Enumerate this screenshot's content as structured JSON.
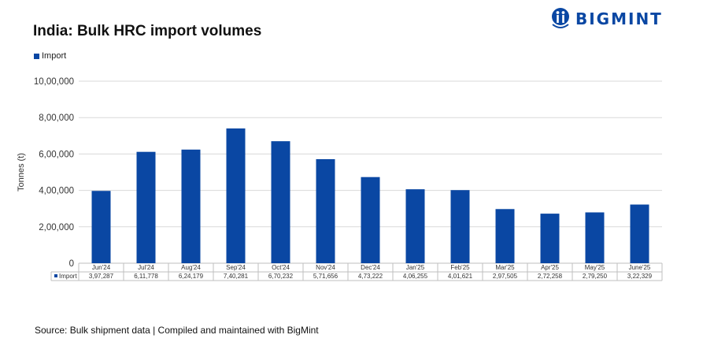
{
  "header": {
    "title": "India: Bulk HRC import volumes",
    "brand": "BIGMINT"
  },
  "footer": {
    "source": "Source: Bulk shipment data | Compiled and maintained with BigMint"
  },
  "colors": {
    "bar": "#0a47a3",
    "brand": "#0a47a3",
    "grid": "#d9d9d9"
  },
  "chart_data": {
    "type": "bar",
    "title": "India: Bulk HRC import volumes",
    "ylabel": "Tonnes (t)",
    "xlabel": "",
    "ylim": [
      0,
      1000000
    ],
    "yticks": [
      "0",
      "2,00,000",
      "4,00,000",
      "6,00,000",
      "8,00,000",
      "10,00,000"
    ],
    "grid": true,
    "legend_position": "top-left",
    "categories": [
      "Jun'24",
      "Jul'24",
      "Aug'24",
      "Sep'24",
      "Oct'24",
      "Nov'24",
      "Dec'24",
      "Jan'25",
      "Feb'25",
      "Mar'25",
      "Apr'25",
      "May'25",
      "June'25"
    ],
    "series": [
      {
        "name": "Import",
        "values": [
          397287,
          611778,
          624179,
          740281,
          670232,
          571656,
          473222,
          406255,
          401621,
          297505,
          272258,
          279250,
          322329
        ],
        "labels": [
          "3,97,287",
          "6,11,778",
          "6,24,179",
          "7,40,281",
          "6,70,232",
          "5,71,656",
          "4,73,222",
          "4,06,255",
          "4,01,621",
          "2,97,505",
          "2,72,258",
          "2,79,250",
          "3,22,329"
        ]
      }
    ]
  }
}
